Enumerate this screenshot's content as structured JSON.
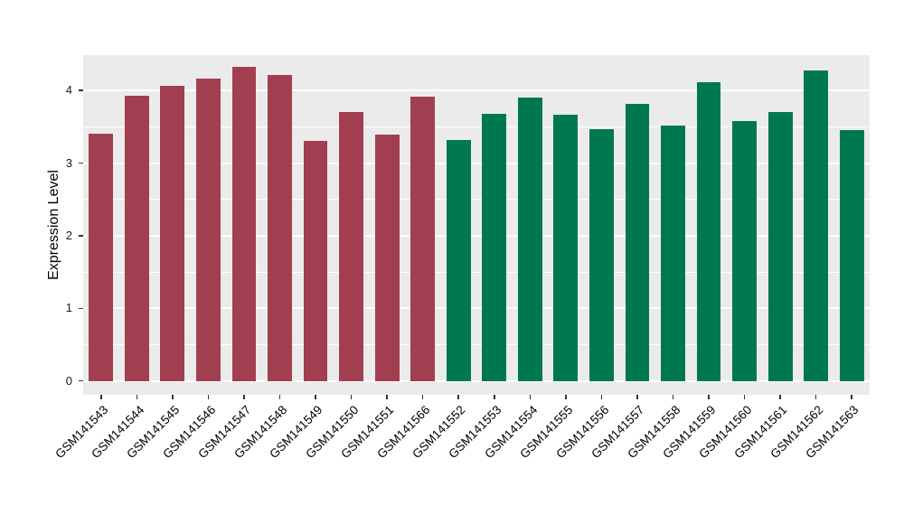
{
  "chart_data": {
    "type": "bar",
    "title": "",
    "xlabel": "",
    "ylabel": "Expression Level",
    "categories": [
      "GSM141543",
      "GSM141544",
      "GSM141545",
      "GSM141546",
      "GSM141547",
      "GSM141548",
      "GSM141549",
      "GSM141550",
      "GSM141551",
      "GSM141566",
      "GSM141552",
      "GSM141553",
      "GSM141554",
      "GSM141555",
      "GSM141556",
      "GSM141557",
      "GSM141558",
      "GSM141559",
      "GSM141560",
      "GSM141561",
      "GSM141562",
      "GSM141563"
    ],
    "values": [
      3.4,
      3.93,
      4.07,
      4.17,
      4.33,
      4.22,
      3.3,
      3.7,
      3.39,
      3.91,
      3.32,
      3.68,
      3.9,
      3.67,
      3.47,
      3.82,
      3.52,
      4.12,
      3.58,
      3.7,
      4.28,
      3.45
    ],
    "bar_groups": [
      0,
      0,
      0,
      0,
      0,
      0,
      0,
      0,
      0,
      0,
      1,
      1,
      1,
      1,
      1,
      1,
      1,
      1,
      1,
      1,
      1,
      1
    ],
    "group_colors": [
      "#A13F50",
      "#00784E"
    ],
    "y_ticks": [
      0,
      1,
      2,
      3,
      4
    ],
    "y_minor_ticks": [
      0.5,
      1.5,
      2.5,
      3.5,
      4.5
    ],
    "ylim": [
      -0.19,
      4.5
    ],
    "panel_bg": "#EBEBEB",
    "grid_color": "#FFFFFF",
    "axis_text_color": "#1A1A1A",
    "legend": "none",
    "grid": "on"
  }
}
